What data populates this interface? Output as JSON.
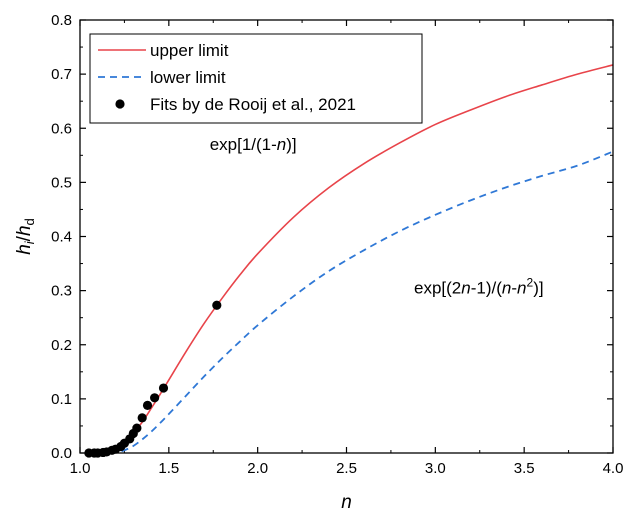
{
  "chart_data": {
    "type": "line",
    "xlabel": "n",
    "ylabel": {
      "base1": "h",
      "sub1": "i",
      "sep": "/",
      "base2": "h",
      "sub2": "d"
    },
    "xlim": [
      1.0,
      4.0
    ],
    "ylim": [
      0.0,
      0.8
    ],
    "xticks": [
      "1.0",
      "1.5",
      "2.0",
      "2.5",
      "3.0",
      "3.5",
      "4.0"
    ],
    "yticks": [
      "0.0",
      "0.1",
      "0.2",
      "0.3",
      "0.4",
      "0.5",
      "0.6",
      "0.7",
      "0.8"
    ],
    "grid": false,
    "legend_position": "top-left",
    "series": [
      {
        "name": "upper limit",
        "style": "solid",
        "color": "#e8444a",
        "x": [
          1.05,
          1.1,
          1.15,
          1.2,
          1.25,
          1.3,
          1.35,
          1.4,
          1.45,
          1.5,
          1.6,
          1.7,
          1.8,
          1.9,
          2.0,
          2.2,
          2.4,
          2.6,
          2.8,
          3.0,
          3.2,
          3.4,
          3.6,
          3.8,
          4.0
        ],
        "y": [
          0.0,
          0.0,
          0.001,
          0.007,
          0.018,
          0.036,
          0.057,
          0.082,
          0.108,
          0.135,
          0.189,
          0.24,
          0.286,
          0.329,
          0.368,
          0.435,
          0.49,
          0.535,
          0.573,
          0.607,
          0.634,
          0.659,
          0.68,
          0.7,
          0.717
        ]
      },
      {
        "name": "lower limit",
        "style": "dashed",
        "color": "#2f78d6",
        "x": [
          1.1,
          1.15,
          1.2,
          1.25,
          1.3,
          1.35,
          1.4,
          1.45,
          1.5,
          1.6,
          1.7,
          1.8,
          1.9,
          2.0,
          2.2,
          2.4,
          2.6,
          2.8,
          3.0,
          3.2,
          3.4,
          3.6,
          3.8,
          4.0
        ],
        "y": [
          0.0,
          0.0,
          0.001,
          0.005,
          0.013,
          0.025,
          0.039,
          0.055,
          0.072,
          0.107,
          0.142,
          0.175,
          0.206,
          0.236,
          0.289,
          0.336,
          0.375,
          0.41,
          0.44,
          0.467,
          0.491,
          0.512,
          0.531,
          0.557
        ]
      },
      {
        "name": "Fits by de Rooij et al., 2021",
        "style": "markers",
        "color": "#000000",
        "x": [
          1.05,
          1.08,
          1.1,
          1.13,
          1.15,
          1.18,
          1.2,
          1.23,
          1.25,
          1.28,
          1.3,
          1.32,
          1.35,
          1.38,
          1.42,
          1.47,
          1.77
        ],
        "y": [
          0.0,
          0.0,
          0.0,
          0.001,
          0.002,
          0.005,
          0.007,
          0.012,
          0.018,
          0.026,
          0.036,
          0.046,
          0.065,
          0.088,
          0.102,
          0.12,
          0.273
        ]
      }
    ],
    "annotations": [
      {
        "id": "upper",
        "x": 1.73,
        "y": 0.56,
        "parts": [
          {
            "text": "exp[1/(1-",
            "italic": false,
            "sup": false
          },
          {
            "text": "n",
            "italic": true,
            "sup": false
          },
          {
            "text": ")]",
            "italic": false,
            "sup": false
          }
        ]
      },
      {
        "id": "lower",
        "x": 2.88,
        "y": 0.295,
        "parts": [
          {
            "text": "exp[(2",
            "italic": false,
            "sup": false
          },
          {
            "text": "n",
            "italic": true,
            "sup": false
          },
          {
            "text": "-1)/(",
            "italic": false,
            "sup": false
          },
          {
            "text": "n",
            "italic": true,
            "sup": false
          },
          {
            "text": "-",
            "italic": false,
            "sup": false
          },
          {
            "text": "n",
            "italic": true,
            "sup": false
          },
          {
            "text": "2",
            "italic": false,
            "sup": true
          },
          {
            "text": ")]",
            "italic": false,
            "sup": false
          }
        ]
      }
    ]
  }
}
